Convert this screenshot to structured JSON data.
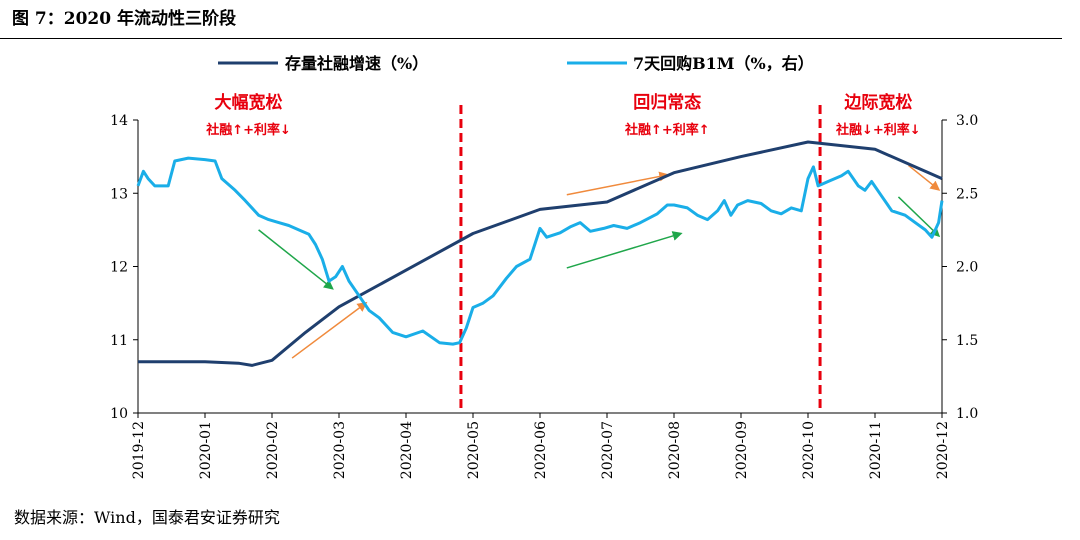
{
  "figure": {
    "title": "图 7：2020 年流动性三阶段",
    "source": "数据来源：Wind，国泰君安证券研究"
  },
  "colors": {
    "series1": "#1f3f6e",
    "series2": "#1aaee8",
    "phase_divider": "#e8000d",
    "arrow_up": "#f08a3c",
    "arrow_down": "#1fa64a",
    "annotation": "#e8000d"
  },
  "chart_data": {
    "type": "line",
    "legend_position": "top",
    "grid": false,
    "x_tick_labels": [
      "2019-12",
      "2020-01",
      "2020-02",
      "2020-03",
      "2020-04",
      "2020-05",
      "2020-06",
      "2020-07",
      "2020-08",
      "2020-09",
      "2020-10",
      "2020-11",
      "2020-12"
    ],
    "y_left": {
      "ticks": [
        "10",
        "11",
        "12",
        "13",
        "14"
      ],
      "ylim": [
        10,
        14
      ]
    },
    "y_right": {
      "ticks": [
        "1.0",
        "1.5",
        "2.0",
        "2.5",
        "3.0"
      ],
      "ylim": [
        1.0,
        3.0
      ]
    },
    "series": [
      {
        "name": "存量社融增速（%）",
        "axis": "left",
        "points": [
          [
            0,
            10.7
          ],
          [
            1,
            10.7
          ],
          [
            1.5,
            10.68
          ],
          [
            1.7,
            10.65
          ],
          [
            2,
            10.72
          ],
          [
            2.5,
            11.1
          ],
          [
            3,
            11.45
          ],
          [
            4,
            11.95
          ],
          [
            5,
            12.45
          ],
          [
            6,
            12.78
          ],
          [
            7,
            12.88
          ],
          [
            8,
            13.28
          ],
          [
            9,
            13.5
          ],
          [
            10,
            13.7
          ],
          [
            11,
            13.6
          ],
          [
            12,
            13.2
          ]
        ]
      },
      {
        "name": "7天回购B1M（%，右）",
        "axis": "right",
        "points": [
          [
            0,
            2.55
          ],
          [
            0.08,
            2.65
          ],
          [
            0.15,
            2.6
          ],
          [
            0.25,
            2.55
          ],
          [
            0.45,
            2.55
          ],
          [
            0.55,
            2.72
          ],
          [
            0.75,
            2.74
          ],
          [
            1,
            2.73
          ],
          [
            1.15,
            2.72
          ],
          [
            1.25,
            2.6
          ],
          [
            1.45,
            2.52
          ],
          [
            1.6,
            2.45
          ],
          [
            1.8,
            2.35
          ],
          [
            1.95,
            2.32
          ],
          [
            2.1,
            2.3
          ],
          [
            2.25,
            2.28
          ],
          [
            2.4,
            2.25
          ],
          [
            2.55,
            2.22
          ],
          [
            2.65,
            2.15
          ],
          [
            2.75,
            2.05
          ],
          [
            2.85,
            1.9
          ],
          [
            2.95,
            1.93
          ],
          [
            3.05,
            2.0
          ],
          [
            3.15,
            1.9
          ],
          [
            3.3,
            1.8
          ],
          [
            3.45,
            1.7
          ],
          [
            3.6,
            1.65
          ],
          [
            3.8,
            1.55
          ],
          [
            4,
            1.52
          ],
          [
            4.25,
            1.56
          ],
          [
            4.5,
            1.48
          ],
          [
            4.7,
            1.47
          ],
          [
            4.8,
            1.48
          ],
          [
            4.9,
            1.58
          ],
          [
            5,
            1.72
          ],
          [
            5.15,
            1.75
          ],
          [
            5.3,
            1.8
          ],
          [
            5.5,
            1.92
          ],
          [
            5.65,
            2.0
          ],
          [
            5.85,
            2.05
          ],
          [
            6,
            2.26
          ],
          [
            6.1,
            2.2
          ],
          [
            6.3,
            2.23
          ],
          [
            6.45,
            2.27
          ],
          [
            6.6,
            2.3
          ],
          [
            6.75,
            2.24
          ],
          [
            6.95,
            2.26
          ],
          [
            7.1,
            2.28
          ],
          [
            7.3,
            2.26
          ],
          [
            7.5,
            2.3
          ],
          [
            7.75,
            2.36
          ],
          [
            7.9,
            2.42
          ],
          [
            8,
            2.42
          ],
          [
            8.2,
            2.4
          ],
          [
            8.35,
            2.35
          ],
          [
            8.5,
            2.32
          ],
          [
            8.65,
            2.38
          ],
          [
            8.75,
            2.45
          ],
          [
            8.85,
            2.35
          ],
          [
            8.95,
            2.42
          ],
          [
            9.1,
            2.45
          ],
          [
            9.3,
            2.43
          ],
          [
            9.45,
            2.38
          ],
          [
            9.6,
            2.36
          ],
          [
            9.75,
            2.4
          ],
          [
            9.9,
            2.38
          ],
          [
            10,
            2.6
          ],
          [
            10.08,
            2.68
          ],
          [
            10.15,
            2.55
          ],
          [
            10.3,
            2.58
          ],
          [
            10.5,
            2.62
          ],
          [
            10.6,
            2.65
          ],
          [
            10.75,
            2.55
          ],
          [
            10.85,
            2.52
          ],
          [
            10.95,
            2.58
          ],
          [
            11.1,
            2.48
          ],
          [
            11.25,
            2.38
          ],
          [
            11.45,
            2.35
          ],
          [
            11.6,
            2.3
          ],
          [
            11.75,
            2.25
          ],
          [
            11.85,
            2.2
          ],
          [
            11.95,
            2.3
          ],
          [
            12,
            2.45
          ]
        ]
      }
    ],
    "phase_dividers_x": [
      4.82,
      10.18
    ],
    "annotations": [
      {
        "title": "大幅宽松",
        "sub": "社融↑+利率↓",
        "x": 1.65
      },
      {
        "title": "回归常态",
        "sub": "社融↑+利率↑",
        "x": 7.9
      },
      {
        "title": "边际宽松",
        "sub": "社融↓+利率↓",
        "x": 11.05
      }
    ],
    "trend_arrows": [
      {
        "color": "down",
        "from": [
          1.8,
          2.25
        ],
        "to": [
          2.9,
          1.85
        ],
        "axis": "right-approx"
      },
      {
        "color": "up",
        "from": [
          2.3,
          10.75
        ],
        "to": [
          3.4,
          11.5
        ],
        "axis": "left"
      },
      {
        "color": "up",
        "from": [
          6.4,
          12.98
        ],
        "to": [
          7.9,
          13.25
        ],
        "axis": "left"
      },
      {
        "color": "down",
        "from": [
          6.4,
          11.98
        ],
        "to": [
          8.1,
          12.45
        ],
        "axis": "left"
      },
      {
        "color": "up",
        "from": [
          11.5,
          13.38
        ],
        "to": [
          11.95,
          13.05
        ],
        "axis": "left"
      },
      {
        "color": "down",
        "from": [
          11.35,
          12.95
        ],
        "to": [
          11.95,
          12.42
        ],
        "axis": "left"
      }
    ]
  }
}
